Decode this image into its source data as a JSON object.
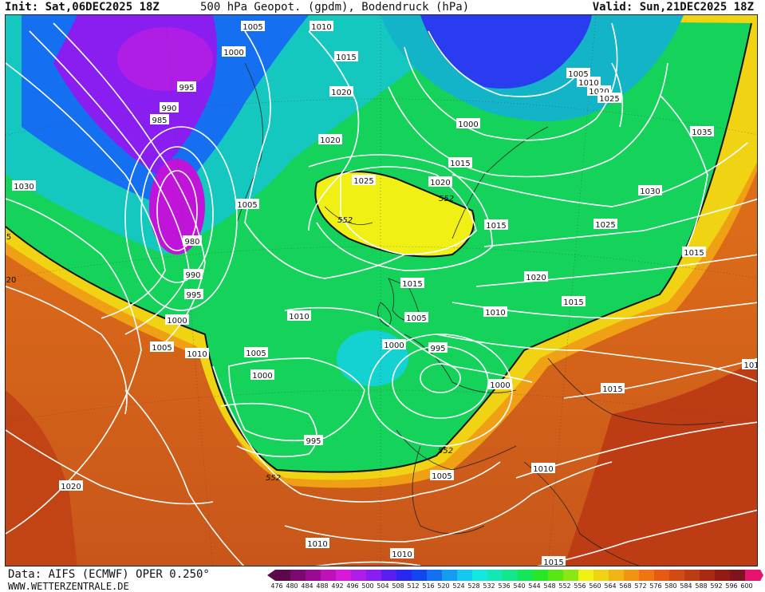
{
  "header": {
    "init": "Init: Sat,06DEC2025 18Z",
    "title": "500 hPa Geopot. (gpdm), Bodendruck (hPa)",
    "valid": "Valid: Sun,21DEC2025 18Z"
  },
  "footer": {
    "source": "Data: AIFS (ECMWF) OPER 0.250°",
    "site": "WWW.WETTERZENTRALE.DE"
  },
  "colorbar": {
    "ticks": [
      "476",
      "480",
      "484",
      "488",
      "492",
      "496",
      "500",
      "504",
      "508",
      "512",
      "516",
      "520",
      "524",
      "528",
      "532",
      "536",
      "540",
      "544",
      "548",
      "552",
      "556",
      "560",
      "564",
      "568",
      "572",
      "576",
      "580",
      "584",
      "588",
      "592",
      "596",
      "600"
    ],
    "colors": [
      "#5a0a4a",
      "#7a0a6e",
      "#9b0a92",
      "#bd12b8",
      "#d81ad8",
      "#b01ee6",
      "#8a1ef0",
      "#5a1ef0",
      "#2a28f0",
      "#1446f0",
      "#1470f0",
      "#149cf0",
      "#14c8f0",
      "#14e6e0",
      "#14e6b4",
      "#14e68a",
      "#14e65a",
      "#28e628",
      "#5ae614",
      "#8ae614",
      "#f0f014",
      "#f0d414",
      "#f0b414",
      "#f09414",
      "#f07414",
      "#e65a14",
      "#d24a14",
      "#bd3c14",
      "#a82a14",
      "#941a14",
      "#80141e",
      "#e6146e"
    ]
  },
  "map": {
    "pressure_labels": [
      {
        "text": "1005"
      },
      {
        "text": "1010"
      },
      {
        "text": "1000"
      },
      {
        "text": "1015"
      },
      {
        "text": "995"
      },
      {
        "text": "1020"
      },
      {
        "text": "990"
      },
      {
        "text": "985"
      },
      {
        "text": "1020"
      },
      {
        "text": "1030"
      },
      {
        "text": "1005"
      },
      {
        "text": "1025"
      },
      {
        "text": "1020"
      },
      {
        "text": "1015"
      },
      {
        "text": "1000"
      },
      {
        "text": "1005"
      },
      {
        "text": "1010"
      },
      {
        "text": "1020"
      },
      {
        "text": "1025"
      },
      {
        "text": "1035"
      },
      {
        "text": "1030"
      },
      {
        "text": "1025"
      },
      {
        "text": "980"
      },
      {
        "text": "990"
      },
      {
        "text": "995"
      },
      {
        "text": "1015"
      },
      {
        "text": "1020"
      },
      {
        "text": "1015"
      },
      {
        "text": "1010"
      },
      {
        "text": "1010"
      },
      {
        "text": "1000"
      },
      {
        "text": "1005"
      },
      {
        "text": "1010"
      },
      {
        "text": "1005"
      },
      {
        "text": "1000"
      },
      {
        "text": "995"
      },
      {
        "text": "1000"
      },
      {
        "text": "1005"
      },
      {
        "text": "1000"
      },
      {
        "text": "995"
      },
      {
        "text": "1015"
      },
      {
        "text": "1015"
      },
      {
        "text": "1015"
      },
      {
        "text": "1020"
      },
      {
        "text": "1010"
      },
      {
        "text": "1005"
      },
      {
        "text": "1010"
      },
      {
        "text": "1010"
      },
      {
        "text": "1015"
      },
      {
        "text": "5"
      },
      {
        "text": "20"
      },
      {
        "text": "101"
      }
    ],
    "height_labels": [
      {
        "text": "552"
      },
      {
        "text": "552"
      },
      {
        "text": "552"
      },
      {
        "text": "552"
      }
    ]
  }
}
